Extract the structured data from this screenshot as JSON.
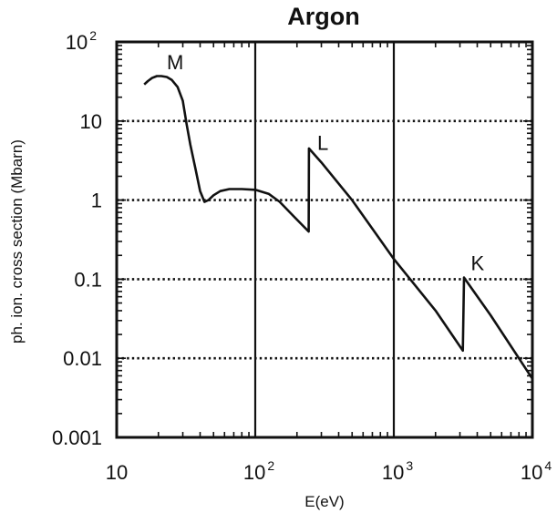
{
  "chart_data": {
    "type": "line",
    "title": "Argon",
    "xlabel": "E(eV)",
    "ylabel": "ph. ion. cross section (Mbarn)",
    "xscale": "log",
    "yscale": "log",
    "xlim": [
      10,
      10000
    ],
    "ylim": [
      0.001,
      100
    ],
    "x_tick_labels": [
      {
        "value": 10,
        "base": "10",
        "exp": ""
      },
      {
        "value": 100,
        "base": "10",
        "exp": "2"
      },
      {
        "value": 1000,
        "base": "10",
        "exp": "3"
      },
      {
        "value": 10000,
        "base": "10",
        "exp": "4"
      }
    ],
    "y_tick_labels": [
      {
        "value": 100,
        "base": "10",
        "exp": "2"
      },
      {
        "value": 10,
        "base": "10",
        "exp": ""
      },
      {
        "value": 1,
        "base": "1",
        "exp": ""
      },
      {
        "value": 0.1,
        "base": "0.1",
        "exp": ""
      },
      {
        "value": 0.01,
        "base": "0.01",
        "exp": ""
      },
      {
        "value": 0.001,
        "base": "0.001",
        "exp": ""
      }
    ],
    "grid": {
      "vertical_solid_at": [
        100,
        1000
      ],
      "horizontal_dotted_at": [
        10,
        1,
        0.1,
        0.01
      ]
    },
    "annotations": [
      {
        "text": "M",
        "x": 23,
        "y": 45
      },
      {
        "text": "L",
        "x": 280,
        "y": 4.3
      },
      {
        "text": "K",
        "x": 3600,
        "y": 0.13
      }
    ],
    "series": [
      {
        "values": [
          [
            15.8,
            29
          ],
          [
            16.8,
            32
          ],
          [
            18,
            35
          ],
          [
            19.5,
            37
          ],
          [
            21,
            37
          ],
          [
            23,
            36
          ],
          [
            25,
            33
          ],
          [
            27.5,
            27
          ],
          [
            30,
            18
          ],
          [
            32,
            9
          ],
          [
            34,
            5
          ],
          [
            37,
            2.5
          ],
          [
            40,
            1.3
          ],
          [
            43,
            0.95
          ],
          [
            46,
            1.0
          ],
          [
            50,
            1.15
          ],
          [
            56,
            1.3
          ],
          [
            65,
            1.38
          ],
          [
            80,
            1.38
          ],
          [
            100,
            1.35
          ],
          [
            125,
            1.2
          ],
          [
            150,
            0.95
          ],
          [
            190,
            0.62
          ],
          [
            243,
            0.4
          ],
          [
            244,
            4.5
          ],
          [
            300,
            3.0
          ],
          [
            500,
            1.0
          ],
          [
            1000,
            0.18
          ],
          [
            2000,
            0.04
          ],
          [
            3150,
            0.0125
          ],
          [
            3210,
            0.105
          ],
          [
            5000,
            0.035
          ],
          [
            10000,
            0.0055
          ]
        ]
      }
    ]
  }
}
